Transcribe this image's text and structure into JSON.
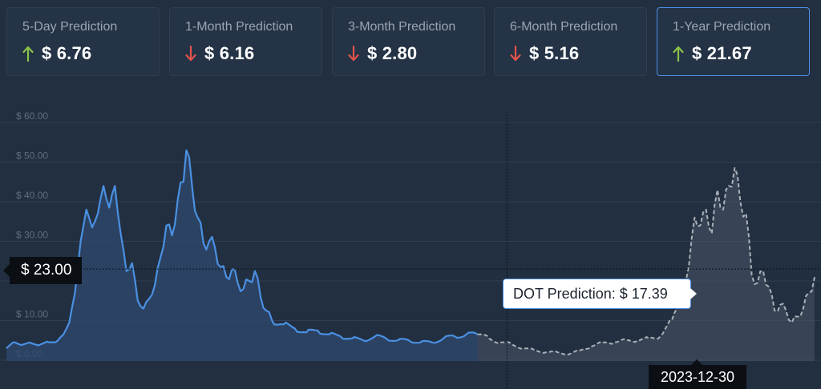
{
  "prediction_cards": [
    {
      "label": "5-Day Prediction",
      "value": "$ 6.76",
      "direction": "up"
    },
    {
      "label": "1-Month Prediction",
      "value": "$ 6.16",
      "direction": "down"
    },
    {
      "label": "3-Month Prediction",
      "value": "$ 2.80",
      "direction": "down"
    },
    {
      "label": "6-Month Prediction",
      "value": "$ 5.16",
      "direction": "down"
    },
    {
      "label": "1-Year Prediction",
      "value": "$ 21.67",
      "direction": "up",
      "active": true
    }
  ],
  "colors": {
    "up": "#8bc34a",
    "down": "#e5534b",
    "historical_line": "#4a90e2",
    "prediction_line": "#a9b0b8",
    "active_border": "#4d8fe6"
  },
  "current_price_label": "$ 23.00",
  "tooltip": {
    "text": "DOT Prediction: $ 17.39"
  },
  "crosshair_date": "2023-12-30",
  "chart_data": {
    "type": "line",
    "title": "",
    "xlabel": "",
    "ylabel": "",
    "ylim": [
      0,
      60
    ],
    "yticks": [
      "$ 0.00",
      "$ 10.00",
      "$ 20.00",
      "$ 30.00",
      "$ 40.00",
      "$ 50.00",
      "$ 60.00"
    ],
    "yticks_values": [
      0,
      10,
      20,
      30,
      40,
      50,
      60
    ],
    "grid": true,
    "reference_value": 23.0,
    "highlight_point": {
      "x": "2023-12-30",
      "y": 17.39
    },
    "series": [
      {
        "style": "solid-area",
        "x": [
          "2020-08-20",
          "2020-09-10",
          "2020-10-01",
          "2020-10-22",
          "2020-11-12",
          "2020-12-03",
          "2020-12-24",
          "2021-01-07",
          "2021-01-21",
          "2021-02-04",
          "2021-02-18",
          "2021-03-04",
          "2021-03-18",
          "2021-04-01",
          "2021-04-15",
          "2021-04-29",
          "2021-05-13",
          "2021-05-27",
          "2021-06-10",
          "2021-06-24",
          "2021-07-08",
          "2021-07-22",
          "2021-08-05",
          "2021-08-19",
          "2021-09-02",
          "2021-09-16",
          "2021-09-30",
          "2021-10-14",
          "2021-10-28",
          "2021-11-04",
          "2021-11-18",
          "2021-12-02",
          "2021-12-16",
          "2021-12-30",
          "2022-01-13",
          "2022-01-27",
          "2022-02-10",
          "2022-02-24",
          "2022-03-10",
          "2022-03-24",
          "2022-04-07",
          "2022-04-21",
          "2022-05-05",
          "2022-05-19",
          "2022-06-02",
          "2022-06-30",
          "2022-07-28",
          "2022-08-25",
          "2022-09-22",
          "2022-10-20",
          "2022-11-17",
          "2022-12-15",
          "2023-01-12",
          "2023-02-09",
          "2023-03-09",
          "2023-04-06",
          "2023-05-04",
          "2023-06-01",
          "2023-06-29",
          "2023-07-27",
          "2023-08-24",
          "2023-09-21",
          "2023-10-19"
        ],
        "y": [
          3.0,
          4.5,
          4.0,
          4.2,
          4.0,
          4.5,
          5.0,
          6.5,
          9.5,
          17.0,
          30.0,
          38.0,
          33.5,
          37.0,
          44.0,
          38.5,
          44.0,
          32.0,
          22.5,
          24.5,
          15.0,
          13.0,
          15.5,
          19.0,
          26.0,
          34.0,
          31.5,
          40.5,
          45.0,
          53.0,
          44.0,
          36.0,
          29.5,
          30.0,
          28.5,
          23.5,
          21.0,
          23.0,
          19.5,
          18.0,
          20.0,
          22.5,
          16.0,
          12.5,
          10.0,
          9.0,
          8.0,
          7.0,
          7.5,
          6.5,
          6.0,
          5.5,
          5.0,
          6.0,
          5.5,
          5.0,
          5.0,
          4.5,
          4.5,
          5.5,
          6.0,
          6.5,
          6.5
        ]
      },
      {
        "style": "dashed-area",
        "x": [
          "2023-10-19",
          "2023-11-16",
          "2023-12-14",
          "2024-01-11",
          "2024-02-08",
          "2024-03-07",
          "2024-04-04",
          "2024-05-02",
          "2024-05-30",
          "2024-06-27",
          "2024-07-25",
          "2024-08-22",
          "2024-09-19",
          "2024-10-17",
          "2024-11-14",
          "2024-12-12",
          "2025-01-09",
          "2025-02-06",
          "2025-03-06",
          "2025-03-20",
          "2025-04-03",
          "2025-04-17",
          "2025-05-01",
          "2025-05-15",
          "2025-05-29",
          "2025-06-12",
          "2025-06-26",
          "2025-07-10",
          "2025-07-24",
          "2025-08-07",
          "2025-08-21",
          "2025-09-04",
          "2025-09-18",
          "2025-10-02",
          "2025-10-16",
          "2025-10-30",
          "2025-11-13",
          "2025-11-27",
          "2025-12-11",
          "2025-12-25",
          "2026-01-08",
          "2026-01-22"
        ],
        "y": [
          6.5,
          5.5,
          4.5,
          4.0,
          3.0,
          2.5,
          2.0,
          2.0,
          1.5,
          2.5,
          3.5,
          4.5,
          4.5,
          5.0,
          5.0,
          5.5,
          6.0,
          10.0,
          17.5,
          24.0,
          36.0,
          34.0,
          38.0,
          32.0,
          43.0,
          38.0,
          44.0,
          48.5,
          40.0,
          37.0,
          21.5,
          19.5,
          22.5,
          18.5,
          12.5,
          14.0,
          12.5,
          9.5,
          11.0,
          13.0,
          17.0,
          21.0
        ]
      }
    ]
  }
}
